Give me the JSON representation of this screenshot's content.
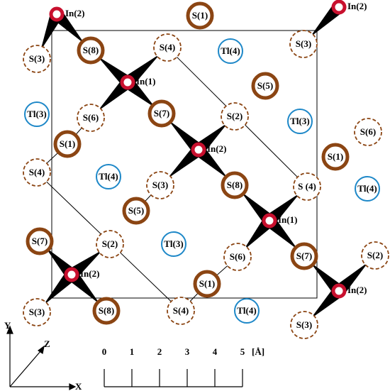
{
  "nodes": [
    {
      "label": "In(2)"
    },
    {
      "label": "S(1)"
    },
    {
      "label": "In(2)"
    },
    {
      "label": "S(3)"
    },
    {
      "label": "S(8)"
    },
    {
      "label": "S(4)"
    },
    {
      "label": "Tl(4)"
    },
    {
      "label": "S(3)"
    },
    {
      "label": "In(1)"
    },
    {
      "label": "S(5)"
    },
    {
      "label": "Tl(3)"
    },
    {
      "label": "S(6)"
    },
    {
      "label": "S(7)"
    },
    {
      "label": "S(2)"
    },
    {
      "label": "Tl(3)"
    },
    {
      "label": "S(6)"
    },
    {
      "label": "S(1)"
    },
    {
      "label": "In(2)"
    },
    {
      "label": "S(1)"
    },
    {
      "label": "S(4)"
    },
    {
      "label": "Tl(4)"
    },
    {
      "label": "S(3)"
    },
    {
      "label": "S(8)"
    },
    {
      "label": "S (4)"
    },
    {
      "label": "Tl(4)"
    },
    {
      "label": "S(5)"
    },
    {
      "label": "In(1)"
    },
    {
      "label": "S(7)"
    },
    {
      "label": "S(2)"
    },
    {
      "label": "Tl(3)"
    },
    {
      "label": "S(6)"
    },
    {
      "label": "S(7)"
    },
    {
      "label": "S(2)"
    },
    {
      "label": "In(2)"
    },
    {
      "label": "S(1)"
    },
    {
      "label": "In(2)"
    },
    {
      "label": "S(3)"
    },
    {
      "label": "S(8)"
    },
    {
      "label": "S(4)"
    },
    {
      "label": "Tl(4)"
    },
    {
      "label": "S(3)"
    }
  ],
  "axes": {
    "x": "X",
    "y": "Y",
    "z": "Z"
  },
  "scale_bar": {
    "ticks": [
      0,
      1,
      2,
      3,
      4,
      5
    ],
    "unit": "[Å]"
  }
}
